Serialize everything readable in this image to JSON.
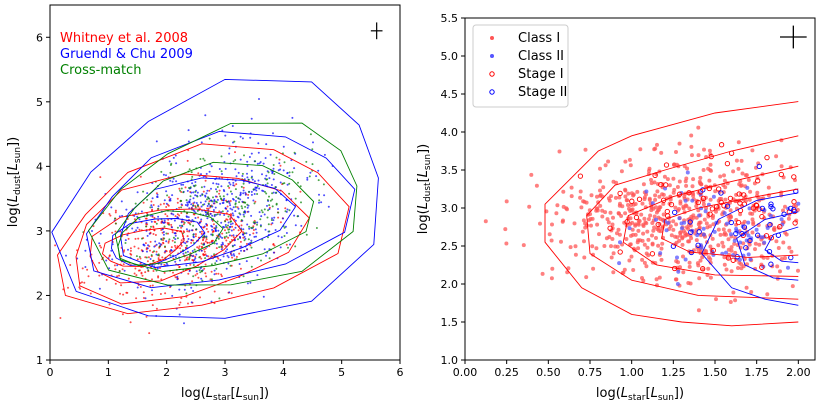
{
  "chart_data": [
    {
      "type": "scatter",
      "xlabel_main": "log(",
      "xlabel_var": "L",
      "xlabel_sub": "star",
      "xlabel_bracket": "[",
      "xlabel_unit": "L",
      "xlabel_unit_sub": "sun",
      "xlabel_end": "])",
      "ylabel_main": "log(",
      "ylabel_var": "L",
      "ylabel_sub": "dust",
      "ylabel_bracket": "[",
      "ylabel_unit": "L",
      "ylabel_unit_sub": "sun",
      "ylabel_end": "])",
      "xlim": [
        0,
        6
      ],
      "ylim": [
        1,
        6.5
      ],
      "xticks": [
        "0",
        "1",
        "2",
        "3",
        "4",
        "5",
        "6"
      ],
      "yticks": [
        "1",
        "2",
        "3",
        "4",
        "5",
        "6"
      ],
      "xtick_values": [
        0,
        1,
        2,
        3,
        4,
        5,
        6
      ],
      "ytick_values": [
        1,
        2,
        3,
        4,
        5,
        6
      ],
      "legend_text": [
        "Whitney et al. 2008",
        "Gruendl & Chu 2009",
        "Cross-match"
      ],
      "errorbar": {
        "x": 5.6,
        "y": 6.1,
        "dx": 0.1,
        "dy": 0.13
      },
      "series": [
        {
          "name": "Whitney et al. 2008",
          "color": "#ff0000",
          "cloud": {
            "mx": 2.2,
            "my": 2.85,
            "sx": 1.0,
            "sy": 0.55,
            "n": 520,
            "seed": 11
          },
          "contours": [
            {
              "cx": 1.6,
              "cy": 2.75,
              "rx": 0.7,
              "ry": 0.28
            },
            {
              "cx": 1.9,
              "cy": 2.8,
              "rx": 1.3,
              "ry": 0.55
            },
            {
              "cx": 2.3,
              "cy": 2.9,
              "rx": 2.0,
              "ry": 0.95
            },
            {
              "cx": 2.6,
              "cy": 3.0,
              "rx": 2.5,
              "ry": 1.25
            }
          ]
        },
        {
          "name": "Gruendl & Chu 2009",
          "color": "#0000ff",
          "cloud": {
            "mx": 2.7,
            "my": 3.2,
            "sx": 1.1,
            "sy": 0.65,
            "n": 620,
            "seed": 23
          },
          "contours": [
            {
              "cx": 1.8,
              "cy": 2.85,
              "rx": 0.8,
              "ry": 0.35
            },
            {
              "cx": 2.6,
              "cy": 3.15,
              "rx": 1.5,
              "ry": 0.65
            },
            {
              "cx": 2.9,
              "cy": 3.3,
              "rx": 2.3,
              "ry": 1.15
            },
            {
              "cx": 3.0,
              "cy": 3.4,
              "rx": 2.8,
              "ry": 1.85
            }
          ]
        },
        {
          "name": "Cross-match",
          "color": "#008000",
          "cloud": {
            "mx": 2.9,
            "my": 3.3,
            "sx": 1.0,
            "sy": 0.6,
            "n": 300,
            "seed": 37
          },
          "contours": [
            {
              "cx": 2.0,
              "cy": 2.9,
              "rx": 0.9,
              "ry": 0.4
            },
            {
              "cx": 2.8,
              "cy": 3.2,
              "rx": 1.7,
              "ry": 0.8
            },
            {
              "cx": 3.1,
              "cy": 3.35,
              "rx": 2.3,
              "ry": 1.25
            }
          ]
        }
      ]
    },
    {
      "type": "scatter",
      "xlabel_main": "log(",
      "xlabel_var": "L",
      "xlabel_sub": "star",
      "xlabel_bracket": "[",
      "xlabel_unit": "L",
      "xlabel_unit_sub": "sun",
      "xlabel_end": "])",
      "ylabel_main": "log(",
      "ylabel_var": "L",
      "ylabel_sub": "dust",
      "ylabel_bracket": "[",
      "ylabel_unit": "L",
      "ylabel_unit_sub": "sun",
      "ylabel_end": "])",
      "xlim": [
        0,
        2.1
      ],
      "ylim": [
        1.0,
        5.5
      ],
      "xticks": [
        "0.00",
        "0.25",
        "0.50",
        "0.75",
        "1.00",
        "1.25",
        "1.50",
        "1.75",
        "2.00"
      ],
      "yticks": [
        "1.0",
        "1.5",
        "2.0",
        "2.5",
        "3.0",
        "3.5",
        "4.0",
        "4.5",
        "5.0",
        "5.5"
      ],
      "xtick_values": [
        0,
        0.25,
        0.5,
        0.75,
        1.0,
        1.25,
        1.5,
        1.75,
        2.0
      ],
      "ytick_values": [
        1.0,
        1.5,
        2.0,
        2.5,
        3.0,
        3.5,
        4.0,
        4.5,
        5.0,
        5.5
      ],
      "legend": [
        {
          "label": "Class I",
          "marker": "dot",
          "color": "#ff5555"
        },
        {
          "label": "Class II",
          "marker": "dot",
          "color": "#5555ff"
        },
        {
          "label": "Stage I",
          "marker": "ring",
          "color": "#ff0000"
        },
        {
          "label": "Stage II",
          "marker": "ring",
          "color": "#0000ff"
        }
      ],
      "errorbar": {
        "x": 1.97,
        "y": 5.25,
        "dx": 0.08,
        "dy": 0.15
      },
      "red_contours": [
        [
          [
            2.0,
            4.4
          ],
          [
            1.5,
            4.25
          ],
          [
            1.0,
            3.95
          ],
          [
            0.8,
            3.75
          ],
          [
            0.48,
            3.05
          ],
          [
            0.48,
            2.55
          ],
          [
            0.7,
            1.95
          ],
          [
            1.0,
            1.6
          ],
          [
            1.3,
            1.5
          ],
          [
            1.6,
            1.45
          ],
          [
            2.0,
            1.5
          ]
        ],
        [
          [
            2.0,
            3.95
          ],
          [
            1.6,
            3.75
          ],
          [
            1.2,
            3.5
          ],
          [
            0.9,
            3.3
          ],
          [
            0.73,
            2.9
          ],
          [
            0.75,
            2.4
          ],
          [
            1.0,
            2.05
          ],
          [
            1.4,
            1.85
          ],
          [
            2.0,
            1.8
          ]
        ],
        [
          [
            2.0,
            3.55
          ],
          [
            1.6,
            3.35
          ],
          [
            1.25,
            3.15
          ],
          [
            0.98,
            2.9
          ],
          [
            0.95,
            2.55
          ],
          [
            1.15,
            2.25
          ],
          [
            1.5,
            2.12
          ],
          [
            2.0,
            2.1
          ]
        ],
        [
          [
            2.0,
            3.25
          ],
          [
            1.75,
            3.15
          ],
          [
            1.4,
            3.0
          ],
          [
            1.2,
            2.85
          ],
          [
            1.18,
            2.6
          ],
          [
            1.35,
            2.42
          ],
          [
            1.7,
            2.35
          ],
          [
            2.0,
            2.38
          ]
        ]
      ],
      "blue_contours": [
        [
          [
            2.0,
            3.2
          ],
          [
            1.75,
            3.1
          ],
          [
            1.52,
            2.85
          ],
          [
            1.42,
            2.4
          ],
          [
            1.6,
            1.95
          ],
          [
            1.8,
            1.8
          ],
          [
            2.0,
            1.72
          ]
        ],
        [
          [
            2.0,
            2.95
          ],
          [
            1.8,
            2.85
          ],
          [
            1.63,
            2.6
          ],
          [
            1.68,
            2.25
          ],
          [
            1.85,
            2.08
          ],
          [
            2.0,
            2.05
          ]
        ],
        [
          [
            2.0,
            2.75
          ],
          [
            1.85,
            2.65
          ],
          [
            1.8,
            2.45
          ],
          [
            1.9,
            2.3
          ],
          [
            2.0,
            2.28
          ]
        ]
      ],
      "class1": {
        "mx": 1.35,
        "my": 2.85,
        "sx": 0.38,
        "sy": 0.42,
        "n": 700,
        "seed": 5
      },
      "class2": {
        "mx": 1.6,
        "my": 2.7,
        "sx": 0.3,
        "sy": 0.3,
        "n": 90,
        "seed": 8
      },
      "stage1": {
        "mx": 1.5,
        "my": 3.0,
        "sx": 0.35,
        "sy": 0.4,
        "n": 70,
        "seed": 13
      },
      "stage2": {
        "mx": 1.7,
        "my": 2.75,
        "sx": 0.25,
        "sy": 0.3,
        "n": 35,
        "seed": 17
      }
    }
  ]
}
